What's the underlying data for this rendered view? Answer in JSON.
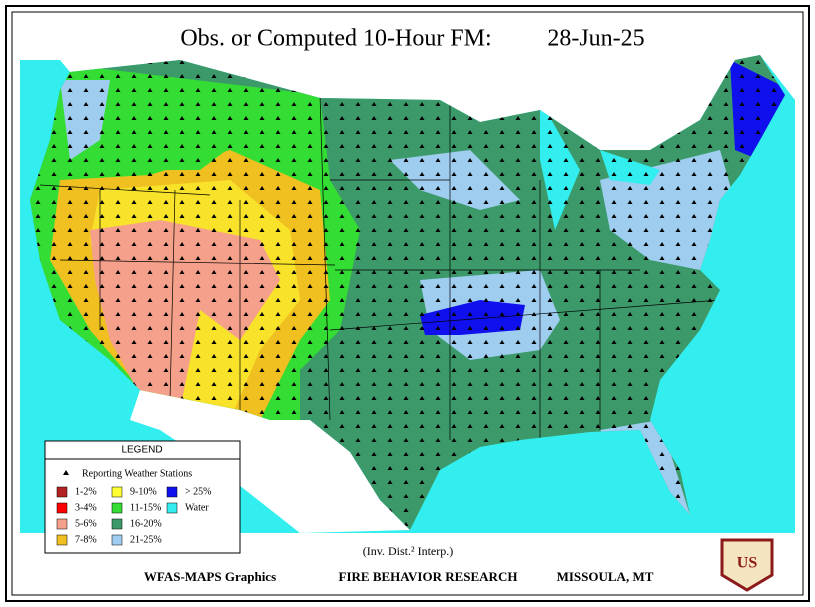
{
  "header": {
    "title": "Obs. or Computed 10-Hour FM:",
    "date": "28-Jun-25"
  },
  "legend": {
    "title": "LEGEND",
    "stations": "Reporting Weather Stations",
    "items": [
      {
        "label": "1-2%",
        "color": "#b22222"
      },
      {
        "label": "3-4%",
        "color": "#ff0000"
      },
      {
        "label": "5-6%",
        "color": "#f4a08a"
      },
      {
        "label": "7-8%",
        "color": "#f0c020"
      },
      {
        "label": "9-10%",
        "color": "#ffff33"
      },
      {
        "label": "11-15%",
        "color": "#33dd33"
      },
      {
        "label": "16-20%",
        "color": "#3c9a6a"
      },
      {
        "label": "21-25%",
        "color": "#9fcdf0"
      },
      {
        "label": "> 25%",
        "color": "#1010ee"
      },
      {
        "label": "Water",
        "color": "#33eeee"
      }
    ]
  },
  "interp": "(Inv. Dist.² Interp.)",
  "footer": {
    "left": "WFAS-MAPS Graphics",
    "center": "FIRE BEHAVIOR RESEARCH",
    "right": "MISSOULA, MT"
  },
  "logo": "US"
}
